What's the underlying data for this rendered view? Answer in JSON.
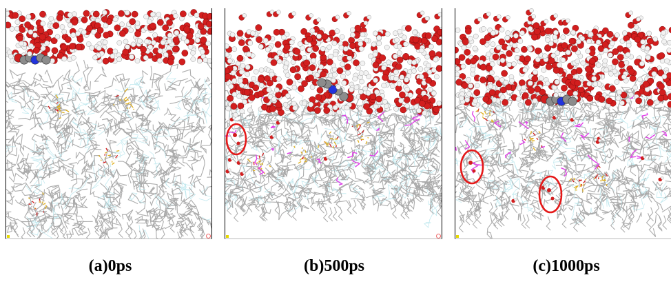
{
  "panels": [
    {
      "caption": "(a)0ps",
      "water_bottom": 0.27,
      "probe": "flat",
      "highlights": [],
      "magenta_density": 0.0
    },
    {
      "caption": "(b)500ps",
      "water_bottom": 0.44,
      "probe": "penetrating",
      "highlights": 1,
      "magenta_density": 0.35
    },
    {
      "caption": "(c)1000ps",
      "water_bottom": 0.4,
      "probe": "buried",
      "highlights": 2,
      "magenta_density": 0.45
    }
  ],
  "colors": {
    "oxygen": "#d21e1e",
    "hydrogen": "#f2f2f2",
    "carbon": "#8c8c8c",
    "nitrogen": "#2233dd",
    "polymer": "#a8a8a8",
    "polymer_light": "#bfe8ee",
    "sulfonate": "#e0b020",
    "sidechain": "#e040e8",
    "highlight_circle": "#e41818",
    "frame": "#000000"
  }
}
